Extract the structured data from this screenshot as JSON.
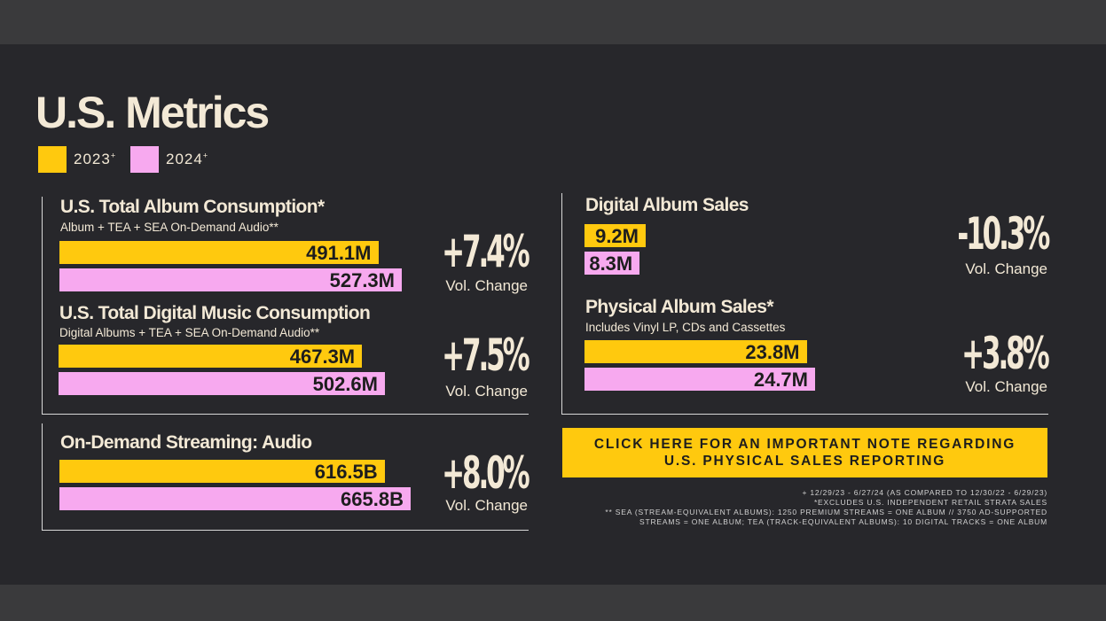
{
  "header": {
    "title": "U.S. Metrics",
    "legend": [
      {
        "label": "2023",
        "mark": "+",
        "color": "#ffc90e"
      },
      {
        "label": "2024",
        "mark": "+",
        "color": "#f7a9ef"
      }
    ]
  },
  "sections": [
    {
      "title": "U.S. Total Album Consumption*",
      "subtitle": "Album + TEA + SEA On-Demand Audio**",
      "bars": [
        {
          "value": 491.1,
          "value_label": "491.1M"
        },
        {
          "value": 527.3,
          "value_label": "527.3M"
        }
      ],
      "change": "+7.4%",
      "change_caption": "Vol. Change"
    },
    {
      "title": "U.S. Total Digital Music Consumption",
      "subtitle": "Digital Albums + TEA + SEA On-Demand Audio**",
      "bars": [
        {
          "value": 467.3,
          "value_label": "467.3M"
        },
        {
          "value": 502.6,
          "value_label": "502.6M"
        }
      ],
      "change": "+7.5%",
      "change_caption": "Vol. Change"
    },
    {
      "title": "On-Demand Streaming: Audio",
      "bars": [
        {
          "value": 616.5,
          "value_label": "616.5B"
        },
        {
          "value": 665.8,
          "value_label": "665.8B"
        }
      ],
      "change": "+8.0%",
      "change_caption": "Vol. Change"
    },
    {
      "title": "Digital Album Sales",
      "bars": [
        {
          "value": 9.2,
          "value_label": "9.2M"
        },
        {
          "value": 8.3,
          "value_label": "8.3M"
        }
      ],
      "change": "-10.3%",
      "change_caption": "Vol. Change"
    },
    {
      "title": "Physical Album Sales*",
      "subtitle": "Includes Vinyl LP, CDs and Cassettes",
      "bars": [
        {
          "value": 23.8,
          "value_label": "23.8M"
        },
        {
          "value": 24.7,
          "value_label": "24.7M"
        }
      ],
      "change": "+3.8%",
      "change_caption": "Vol. Change"
    }
  ],
  "button": [
    "CLICK HERE FOR AN IMPORTANT NOTE REGARDING",
    "U.S. PHYSICAL SALES REPORTING"
  ],
  "footnotes": [
    "+ 12/29/23 - 6/27/24 (AS COMPARED TO 12/30/22 - 6/29/23)",
    "*EXCLUDES U.S. INDEPENDENT RETAIL STRATA SALES",
    "** SEA (STREAM-EQUIVALENT ALBUMS): 1250 PREMIUM STREAMS = ONE ALBUM // 3750 AD-SUPPORTED",
    "STREAMS = ONE ALBUM; TEA (TRACK-EQUIVALENT ALBUMS): 10 DIGITAL TRACKS = ONE ALBUM"
  ]
}
